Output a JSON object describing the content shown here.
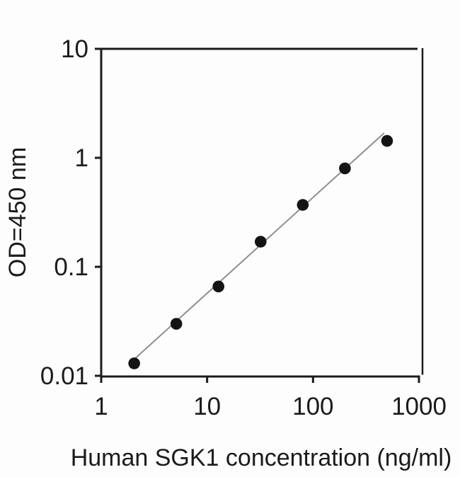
{
  "figure": {
    "description": "ELISA standard curve, log-log scatter plot with linear fit line",
    "background_color": "#fdfdfd",
    "axis_color": "#1b1b1b",
    "text_color": "#1b1b1b",
    "marker_color": "#141414",
    "fit_line_color": "#8f8f8f"
  },
  "chart_data": {
    "type": "scatter",
    "title": "",
    "xlabel": "Human SGK1 concentration (ng/ml)",
    "ylabel": "OD=450 nm",
    "x_scale": "log",
    "y_scale": "log",
    "xlim": [
      1,
      1000
    ],
    "ylim": [
      0.01,
      10
    ],
    "x_ticks": [
      1,
      10,
      100,
      1000
    ],
    "y_ticks": [
      10,
      1,
      0.1,
      0.01
    ],
    "x_tick_labels": [
      "1",
      "10",
      "100",
      "1000"
    ],
    "y_tick_labels": [
      "10",
      "1",
      "0.1",
      "0.01"
    ],
    "grid": false,
    "legend": false,
    "series": [
      {
        "name": "standard-points",
        "marker": "filled-circle",
        "x": [
          2.05,
          5.12,
          12.8,
          32,
          80,
          200,
          500
        ],
        "y": [
          0.013,
          0.03,
          0.066,
          0.17,
          0.37,
          0.8,
          1.43
        ]
      }
    ],
    "fit_line": {
      "x_start": 2.1,
      "y_start": 0.0145,
      "x_end": 470,
      "y_end": 1.69
    }
  }
}
